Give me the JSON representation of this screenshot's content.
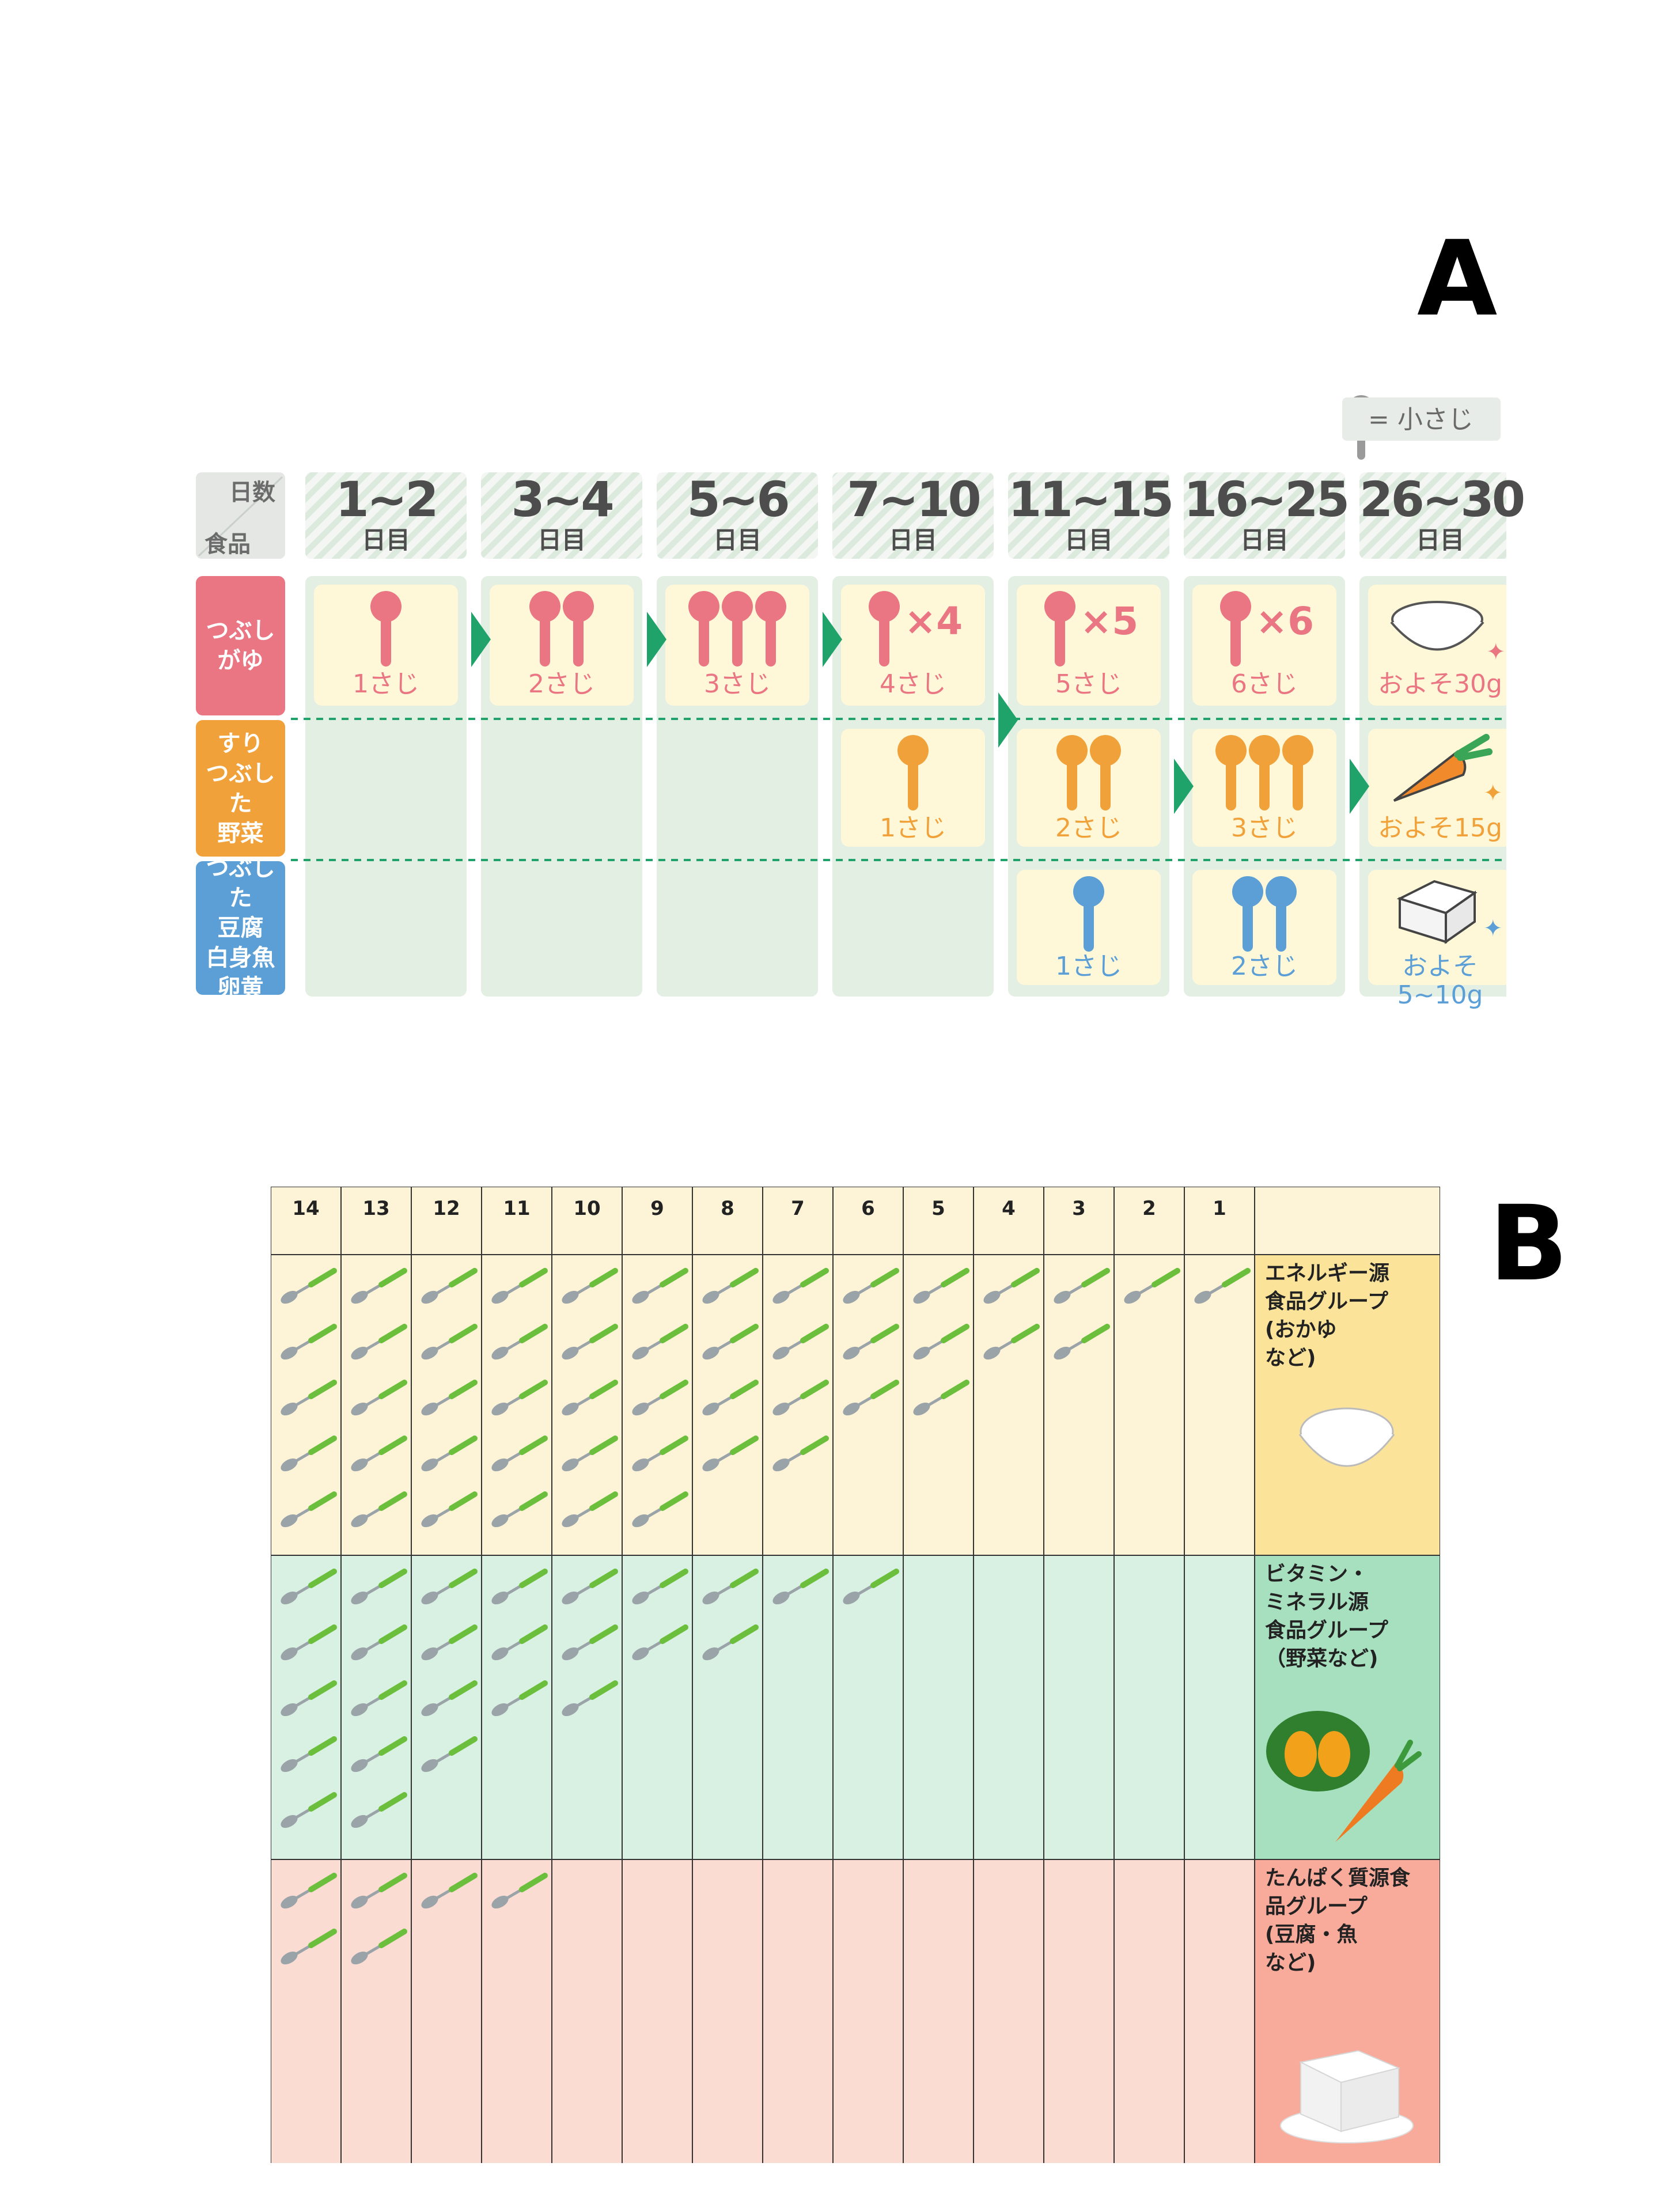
{
  "panel_labels": {
    "a": "A",
    "b": "B"
  },
  "panel_a": {
    "legend": "= 小さじ",
    "corner": {
      "top": "日数",
      "bottom": "食品"
    },
    "days": [
      {
        "range": "1~2",
        "unit": "日目"
      },
      {
        "range": "3~4",
        "unit": "日目"
      },
      {
        "range": "5~6",
        "unit": "日目"
      },
      {
        "range": "7~10",
        "unit": "日目"
      },
      {
        "range": "11~15",
        "unit": "日目"
      },
      {
        "range": "16~25",
        "unit": "日目"
      },
      {
        "range": "26~30",
        "unit": "日目"
      }
    ],
    "rows": [
      {
        "label": "つぶし\nがゆ",
        "color": "#ea7583"
      },
      {
        "label": "すり\nつぶした\n野菜",
        "color": "#f1a13a"
      },
      {
        "label": "つぶした\n豆腐\n白身魚\n卵黄",
        "color": "#5b9fd6"
      }
    ],
    "porridge": [
      {
        "spoons": 1,
        "mult": "",
        "amount": "1さじ"
      },
      {
        "spoons": 2,
        "mult": "",
        "amount": "2さじ"
      },
      {
        "spoons": 3,
        "mult": "",
        "amount": "3さじ"
      },
      {
        "spoons": 1,
        "mult": "×4",
        "amount": "4さじ"
      },
      {
        "spoons": 1,
        "mult": "×5",
        "amount": "5さじ"
      },
      {
        "spoons": 1,
        "mult": "×6",
        "amount": "6さじ"
      },
      {
        "spoons": 0,
        "mult": "",
        "amount": "およそ30g"
      }
    ],
    "vegetables": [
      {
        "col": 3,
        "spoons": 1,
        "amount": "1さじ"
      },
      {
        "col": 4,
        "spoons": 2,
        "amount": "2さじ"
      },
      {
        "col": 5,
        "spoons": 3,
        "amount": "3さじ"
      },
      {
        "col": 6,
        "spoons": 0,
        "amount": "およそ15g"
      }
    ],
    "protein": [
      {
        "col": 4,
        "spoons": 1,
        "amount": "1さじ"
      },
      {
        "col": 5,
        "spoons": 2,
        "amount": "2さじ"
      },
      {
        "col": 6,
        "spoons": 0,
        "amount": "およそ5~10g"
      }
    ],
    "colors": {
      "pink": "#ea7583",
      "orange": "#f1a13a",
      "blue": "#5b9fd6",
      "green": "#1fa36a",
      "cell_bg": "#e3efe3",
      "cell_cream": "#fff8d8"
    }
  },
  "panel_b": {
    "days": [
      "14",
      "13",
      "12",
      "11",
      "10",
      "9",
      "8",
      "7",
      "6",
      "5",
      "4",
      "3",
      "2",
      "1"
    ],
    "groups": [
      {
        "label": "エネルギー源\n食品グループ\n(おかゆ\n など)",
        "color": "#fdf3d6",
        "label_color": "#fbe49a",
        "spoons": [
          5,
          5,
          5,
          5,
          5,
          5,
          4,
          4,
          3,
          3,
          2,
          2,
          1,
          1
        ]
      },
      {
        "label": "ビタミン・\nミネラル源\n食品グループ\n（野菜など)",
        "color": "#d8f1e2",
        "label_color": "#a7e0bf",
        "spoons": [
          5,
          5,
          4,
          3,
          3,
          2,
          2,
          1,
          1,
          0,
          0,
          0,
          0,
          0
        ]
      },
      {
        "label": "たんぱく質源食\n品グループ\n(豆腐・魚\n など)",
        "color": "#fbdcd3",
        "label_color": "#f9ab9b",
        "spoons": [
          2,
          2,
          1,
          1,
          0,
          0,
          0,
          0,
          0,
          0,
          0,
          0,
          0,
          0
        ]
      }
    ]
  }
}
